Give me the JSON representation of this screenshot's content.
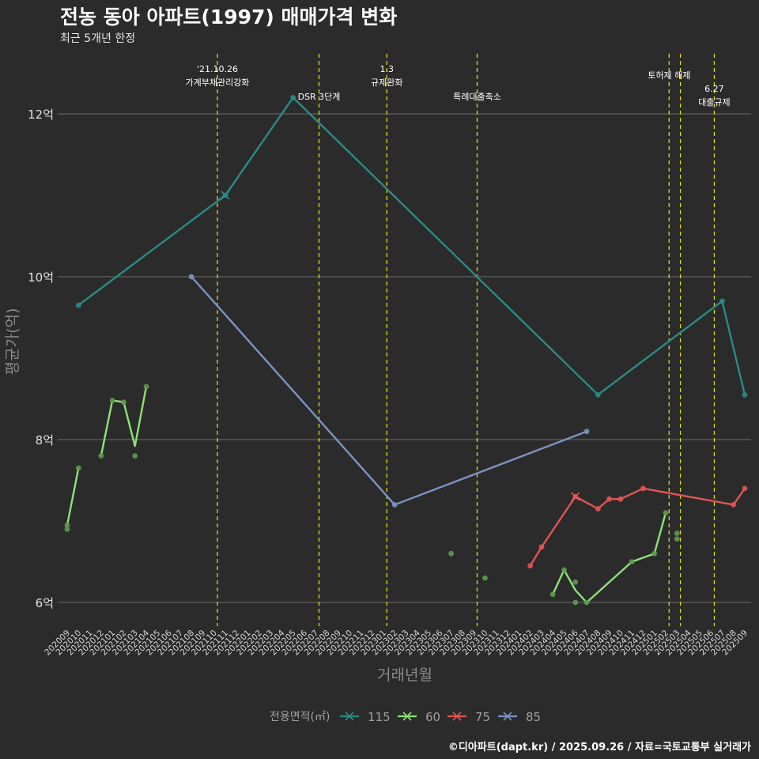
{
  "title": "전농 동아 아파트(1997) 매매가격 변화",
  "subtitle": "최근 5개년 한정",
  "caption": "©디아파트(dapt.kr) / 2025.09.26 / 자료=국토교통부 실거래가",
  "colors": {
    "background": "#2b2b2b",
    "grid": "#6e6e6e",
    "event_line": "#d9d91a",
    "series_115": "#2a8b86",
    "series_60": "#8fe07a",
    "series_75": "#e05555",
    "series_85": "#7b93c0",
    "dots_60": "#5e9a4e"
  },
  "chart_data": {
    "type": "line",
    "title": "전농 동아 아파트(1997) 매매가격 변화",
    "xlabel": "거래년월",
    "ylabel": "평균가(억)",
    "ylim": [
      5.75,
      12.65
    ],
    "yticks": [
      6,
      8,
      10,
      12
    ],
    "ytick_labels": [
      "6억",
      "8억",
      "10억",
      "12억"
    ],
    "categories": [
      "202009",
      "202010",
      "202011",
      "202012",
      "202101",
      "202102",
      "202103",
      "202104",
      "202105",
      "202106",
      "202107",
      "202108",
      "202109",
      "202110",
      "202111",
      "202112",
      "202201",
      "202202",
      "202203",
      "202204",
      "202205",
      "202206",
      "202207",
      "202208",
      "202209",
      "202210",
      "202211",
      "202212",
      "202301",
      "202302",
      "202303",
      "202304",
      "202305",
      "202306",
      "202307",
      "202308",
      "202309",
      "202310",
      "202311",
      "202312",
      "202401",
      "202402",
      "202403",
      "202404",
      "202405",
      "202406",
      "202407",
      "202408",
      "202409",
      "202410",
      "202411",
      "202412",
      "202501",
      "202502",
      "202503",
      "202504",
      "202505",
      "202506",
      "202507",
      "202508",
      "202509"
    ],
    "legend_title": "전용면적(㎡)",
    "legend_position": "bottom",
    "events": [
      {
        "x": 13.3,
        "label": "'21.10.26\n가계부채관리강화",
        "level": 0
      },
      {
        "x": 22.3,
        "label": "DSR 3단계",
        "level": 2
      },
      {
        "x": 28.3,
        "label": "1.3\n규제완화",
        "level": 0
      },
      {
        "x": 36.3,
        "label": "특례대출축소",
        "level": 2
      },
      {
        "x": 53.3,
        "label": "토허제 해제",
        "level": 1
      },
      {
        "x": 54.3,
        "label": "",
        "level": 1
      },
      {
        "x": 57.3,
        "label": "6.27\n대출규제",
        "level": 3
      }
    ],
    "series": [
      {
        "name": "115",
        "color_key": "series_115",
        "line": [
          [
            1,
            9.65
          ],
          [
            14,
            11.0
          ],
          [
            20,
            12.2
          ],
          [
            47,
            8.55
          ],
          [
            58,
            9.7
          ],
          [
            60,
            8.55
          ]
        ],
        "points": [
          [
            1,
            9.65
          ],
          [
            14,
            11.0
          ],
          [
            20,
            12.2
          ],
          [
            47,
            8.55
          ],
          [
            58,
            9.7
          ],
          [
            60,
            8.55
          ]
        ],
        "cross": [
          [
            14,
            11.0
          ]
        ]
      },
      {
        "name": "60",
        "color_key": "series_60",
        "line": [
          [
            0,
            6.95
          ],
          [
            1,
            7.65
          ],
          null,
          [
            3,
            7.8
          ],
          [
            4,
            8.48
          ],
          [
            5,
            8.46
          ],
          [
            6,
            7.92
          ],
          [
            7,
            8.65
          ],
          null,
          [
            43,
            6.1
          ],
          [
            44,
            6.4
          ],
          [
            45,
            6.15
          ],
          [
            46,
            6.0
          ],
          [
            50,
            6.5
          ],
          [
            52,
            6.6
          ],
          [
            53,
            7.1
          ]
        ],
        "points": [
          [
            0,
            6.95
          ],
          [
            0,
            6.9
          ],
          [
            1,
            7.65
          ],
          [
            3,
            7.8
          ],
          [
            4,
            8.48
          ],
          [
            5,
            8.46
          ],
          [
            6,
            7.8
          ],
          [
            7,
            8.65
          ],
          [
            34,
            6.6
          ],
          [
            37,
            6.3
          ],
          [
            43,
            6.1
          ],
          [
            44,
            6.4
          ],
          [
            45,
            6.25
          ],
          [
            45,
            6.0
          ],
          [
            46,
            6.0
          ],
          [
            50,
            6.5
          ],
          [
            52,
            6.6
          ],
          [
            53,
            7.1
          ],
          [
            54,
            6.85
          ],
          [
            54,
            6.78
          ]
        ],
        "cross": []
      },
      {
        "name": "75",
        "color_key": "series_75",
        "line": [
          [
            41,
            6.45
          ],
          [
            42,
            6.68
          ],
          [
            45,
            7.3
          ],
          [
            47,
            7.15
          ],
          [
            48,
            7.27
          ],
          [
            49,
            7.27
          ],
          [
            51,
            7.4
          ],
          [
            59,
            7.2
          ],
          [
            60,
            7.4
          ]
        ],
        "points": [
          [
            41,
            6.45
          ],
          [
            42,
            6.68
          ],
          [
            45,
            7.3
          ],
          [
            47,
            7.15
          ],
          [
            48,
            7.27
          ],
          [
            49,
            7.27
          ],
          [
            51,
            7.4
          ],
          [
            59,
            7.2
          ],
          [
            60,
            7.4
          ]
        ],
        "cross": [
          [
            45,
            7.3
          ]
        ]
      },
      {
        "name": "85",
        "color_key": "series_85",
        "line": [
          [
            11,
            10.0
          ],
          [
            29,
            7.2
          ],
          [
            46,
            8.1
          ]
        ],
        "points": [
          [
            11,
            10.0
          ],
          [
            29,
            7.2
          ],
          [
            46,
            8.1
          ]
        ],
        "cross": []
      }
    ]
  }
}
